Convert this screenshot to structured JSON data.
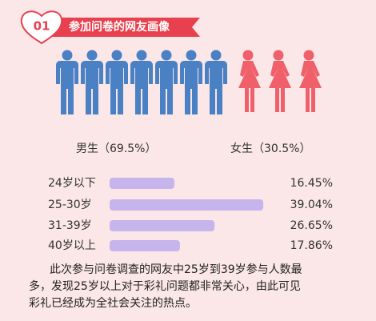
{
  "header": {
    "number": "01",
    "title": "参加问卷的网友画像"
  },
  "gender": {
    "items": [
      {
        "label": "男生（69.5%）",
        "value": 69.5,
        "icons": 7,
        "color": "#4a80c4"
      },
      {
        "label": "女生（30.5%）",
        "value": 30.5,
        "icons": 3,
        "color": "#f0606a"
      }
    ]
  },
  "chart_data": {
    "type": "bar",
    "orientation": "horizontal",
    "color": "#c6b4ec",
    "categories": [
      "24岁以下",
      "25-30岁",
      "31-39岁",
      "40岁以上"
    ],
    "values": [
      16.45,
      39.04,
      26.65,
      17.86
    ],
    "value_labels": [
      "16.45%",
      "39.04%",
      "26.65%",
      "17.86%"
    ]
  },
  "paragraph": {
    "lines": [
      "此次参与问卷调查的网友中25岁到39岁参与人数最",
      "多，发现25岁以上对于彩礼问题都非常关心，由此可见",
      "彩礼已经成为全社会关注的热点。"
    ]
  }
}
